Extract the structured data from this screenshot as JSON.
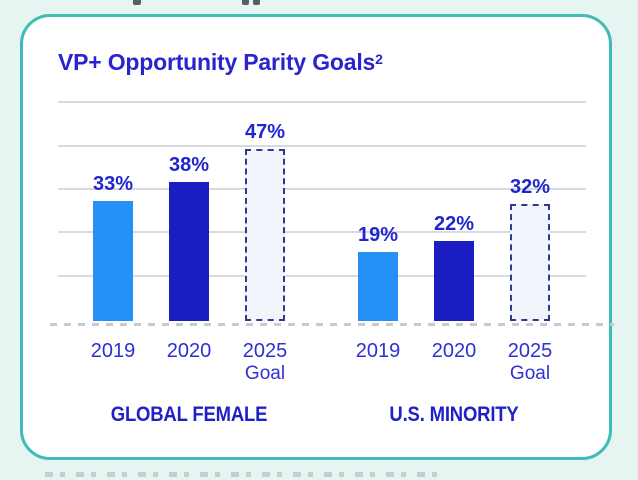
{
  "page": {
    "background_color": "#E7F5F2",
    "card_border_color": "#3CBCB2",
    "card_background_color": "#FFFFFF"
  },
  "card": {
    "title": "VP+ Opportunity Parity Goals",
    "title_superscript": "2"
  },
  "chart_data": {
    "type": "bar",
    "title": "VP+ Opportunity Parity Goals²",
    "unit": "%",
    "ylim": [
      0,
      55
    ],
    "grid": "horizontal gridlines, dashed zero baseline",
    "legend_position": "none",
    "value_label_color": "#2026CF",
    "bar_colors": {
      "light": "#2590F5",
      "dark": "#1A1EC2",
      "goal_fill": "#F1F4FA",
      "goal_dashed_border": "#2E3A8B"
    },
    "categories": [
      "2019",
      "2020",
      "2025 Goal"
    ],
    "groups": [
      {
        "label": "GLOBAL FEMALE",
        "bars": [
          {
            "year": "2019",
            "sublabel": "",
            "value": 33,
            "display": "33%",
            "style": "light"
          },
          {
            "year": "2020",
            "sublabel": "",
            "value": 38,
            "display": "38%",
            "style": "dark"
          },
          {
            "year": "2025",
            "sublabel": "Goal",
            "value": 47,
            "display": "47%",
            "style": "goal"
          }
        ]
      },
      {
        "label": "U.S. MINORITY",
        "bars": [
          {
            "year": "2019",
            "sublabel": "",
            "value": 19,
            "display": "19%",
            "style": "light"
          },
          {
            "year": "2020",
            "sublabel": "",
            "value": 22,
            "display": "22%",
            "style": "dark"
          },
          {
            "year": "2025",
            "sublabel": "Goal",
            "value": 32,
            "display": "32%",
            "style": "goal"
          }
        ]
      }
    ]
  }
}
